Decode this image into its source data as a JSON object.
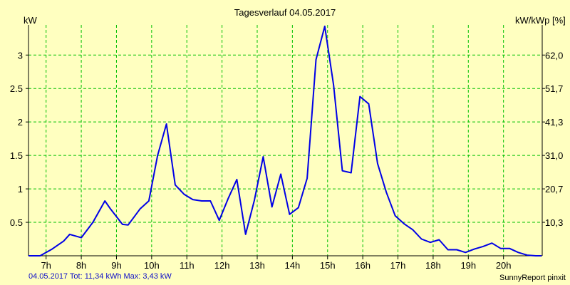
{
  "chart_data": {
    "type": "line",
    "title": "Tagesverlauf 04.05.2017",
    "ylabel": "kW",
    "ylabel_right": "kW/kWp [%]",
    "ylim": [
      0,
      3.45
    ],
    "xlim": [
      6.5,
      21.1
    ],
    "grid": true,
    "y_ticks": [
      {
        "value": 0.5,
        "label": "0.5"
      },
      {
        "value": 1,
        "label": "1"
      },
      {
        "value": 1.5,
        "label": "1.5"
      },
      {
        "value": 2,
        "label": "2"
      },
      {
        "value": 2.5,
        "label": "2.5"
      },
      {
        "value": 3,
        "label": "3"
      }
    ],
    "y_right_ticks": [
      {
        "value": 0.5,
        "label": "10,3"
      },
      {
        "value": 1,
        "label": "20,7"
      },
      {
        "value": 1.5,
        "label": "31,0"
      },
      {
        "value": 2,
        "label": "41,3"
      },
      {
        "value": 2.5,
        "label": "51,7"
      },
      {
        "value": 3,
        "label": "62,0"
      }
    ],
    "x_ticks": [
      {
        "value": 7,
        "label": "7h"
      },
      {
        "value": 8,
        "label": "8h"
      },
      {
        "value": 9,
        "label": "9h"
      },
      {
        "value": 10,
        "label": "10h"
      },
      {
        "value": 11,
        "label": "11h"
      },
      {
        "value": 12,
        "label": "12h"
      },
      {
        "value": 13,
        "label": "13h"
      },
      {
        "value": 14,
        "label": "14h"
      },
      {
        "value": 15,
        "label": "15h"
      },
      {
        "value": 16,
        "label": "16h"
      },
      {
        "value": 17,
        "label": "17h"
      },
      {
        "value": 18,
        "label": "18h"
      },
      {
        "value": 19,
        "label": "19h"
      },
      {
        "value": 20,
        "label": "20h"
      }
    ],
    "series": [
      {
        "color": "#0000e6",
        "x": [
          6.5,
          6.83,
          7.17,
          7.5,
          7.67,
          8.0,
          8.33,
          8.67,
          8.83,
          9.17,
          9.33,
          9.67,
          9.92,
          10.17,
          10.42,
          10.67,
          10.92,
          11.17,
          11.42,
          11.67,
          11.92,
          12.17,
          12.42,
          12.67,
          12.92,
          13.17,
          13.42,
          13.67,
          13.92,
          14.17,
          14.42,
          14.67,
          14.92,
          15.17,
          15.42,
          15.67,
          15.92,
          16.17,
          16.42,
          16.67,
          16.92,
          17.17,
          17.42,
          17.67,
          17.92,
          18.17,
          18.42,
          18.67,
          18.92,
          19.17,
          19.42,
          19.67,
          19.92,
          20.17,
          20.42,
          20.67,
          20.92,
          21.08
        ],
        "y": [
          0.0,
          0.0,
          0.1,
          0.22,
          0.32,
          0.27,
          0.5,
          0.82,
          0.7,
          0.47,
          0.46,
          0.7,
          0.82,
          1.5,
          1.97,
          1.06,
          0.92,
          0.84,
          0.82,
          0.82,
          0.53,
          0.85,
          1.14,
          0.32,
          0.83,
          1.48,
          0.73,
          1.22,
          0.62,
          0.72,
          1.16,
          2.93,
          3.43,
          2.55,
          1.27,
          1.24,
          2.38,
          2.27,
          1.38,
          0.95,
          0.6,
          0.48,
          0.39,
          0.25,
          0.2,
          0.24,
          0.09,
          0.09,
          0.05,
          0.1,
          0.14,
          0.19,
          0.11,
          0.11,
          0.05,
          0.01,
          0.0,
          0.0
        ]
      }
    ]
  },
  "footer": {
    "summary": "04.05.2017 Tot: 11,34 kWh Max: 3,43 kW",
    "brand": "SunnyReport pinxit"
  },
  "colors": {
    "background": "#ffffc0",
    "grid": "#00c000",
    "line": "#0000e6"
  }
}
